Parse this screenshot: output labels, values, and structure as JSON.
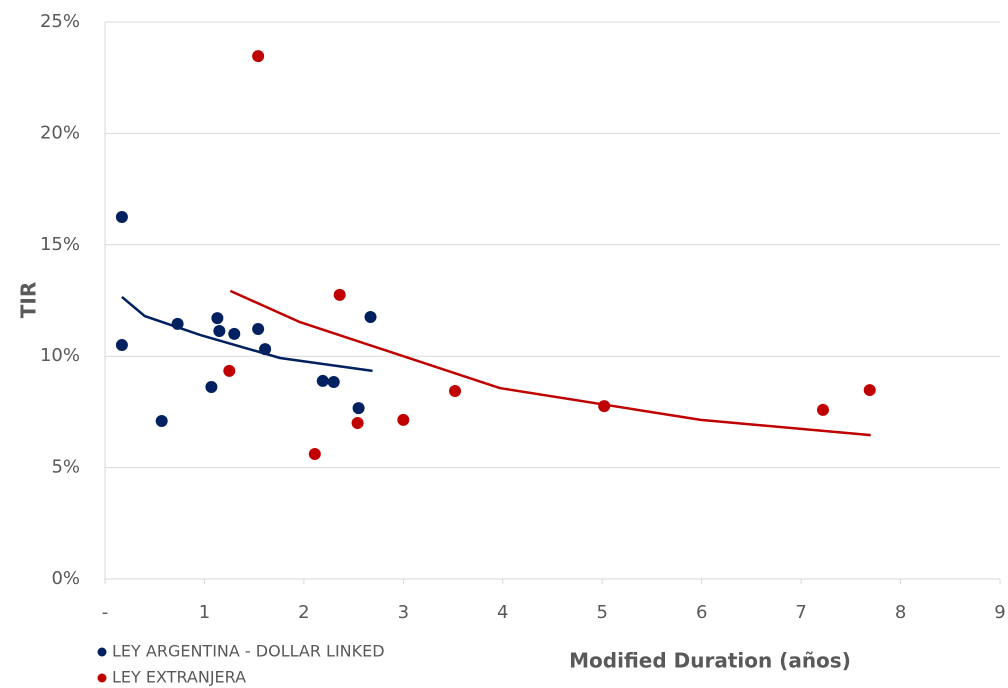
{
  "chart_data": {
    "type": "scatter",
    "x_label": "Modified Duration (años)",
    "y_label": "TIR",
    "xlim": [
      0,
      9
    ],
    "xticks": [
      {
        "value": 0,
        "label": "-"
      },
      1,
      2,
      3,
      4,
      5,
      6,
      7,
      8,
      9
    ],
    "ylim": [
      0,
      25
    ],
    "yticks": [
      {
        "value": 0,
        "label": "0%"
      },
      {
        "value": 5,
        "label": "5%"
      },
      {
        "value": 10,
        "label": "10%"
      },
      {
        "value": 15,
        "label": "15%"
      },
      {
        "value": 20,
        "label": "20%"
      },
      {
        "value": 25,
        "label": "25%"
      }
    ],
    "grid": true,
    "legend": "bottom-left",
    "series": [
      {
        "name": "LEY ARGENTINA - DOLLAR LINKED",
        "color": "#002060",
        "x": [
          0.17,
          0.17,
          0.57,
          0.73,
          1.07,
          1.13,
          1.15,
          1.3,
          1.54,
          1.61,
          2.19,
          2.3,
          2.55,
          2.67
        ],
        "values": [
          16.25,
          10.5,
          7.09,
          11.45,
          8.62,
          11.71,
          11.13,
          11.0,
          11.22,
          10.32,
          8.89,
          8.84,
          7.67,
          11.76
        ],
        "trendline": {
          "x": [
            0.17,
            0.4,
            0.96,
            1.76,
            2.69
          ],
          "values": [
            12.66,
            11.8,
            10.95,
            9.92,
            9.34
          ]
        }
      },
      {
        "name": "LEY EXTRANJERA",
        "color": "#c00000",
        "x": [
          1.54,
          1.25,
          2.11,
          2.36,
          2.54,
          3.0,
          3.52,
          5.02,
          7.22,
          7.69
        ],
        "values": [
          23.47,
          9.34,
          5.61,
          12.75,
          7.0,
          7.14,
          8.44,
          7.76,
          7.59,
          8.48
        ],
        "trendline": {
          "x": [
            1.26,
            1.96,
            3.97,
            5.99,
            7.7
          ],
          "values": [
            12.93,
            11.53,
            8.57,
            7.14,
            6.46
          ]
        }
      }
    ]
  }
}
